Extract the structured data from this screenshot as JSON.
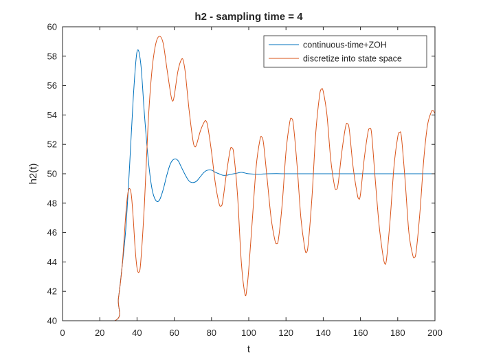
{
  "chart_data": {
    "type": "line",
    "title": "h2 - sampling time = 4",
    "xlabel": "t",
    "ylabel": "h2(t)",
    "xlim": [
      0,
      200
    ],
    "ylim": [
      40,
      60
    ],
    "xticks": [
      0,
      20,
      40,
      60,
      80,
      100,
      120,
      140,
      160,
      180,
      200
    ],
    "yticks": [
      40,
      42,
      44,
      46,
      48,
      50,
      52,
      54,
      56,
      58,
      60
    ],
    "grid": false,
    "legend_position": "top-right",
    "series": [
      {
        "name": "continuous-time+ZOH",
        "color": "#0072BD",
        "points": [
          [
            0,
            40
          ],
          [
            28,
            40
          ],
          [
            30,
            41.5
          ],
          [
            32,
            43.7
          ],
          [
            34,
            46.3
          ],
          [
            36,
            50.5
          ],
          [
            38,
            55.2
          ],
          [
            40,
            58.3
          ],
          [
            42,
            57.5
          ],
          [
            44,
            54.0
          ],
          [
            46,
            51.0
          ],
          [
            48,
            49.0
          ],
          [
            50,
            48.2
          ],
          [
            52,
            48.2
          ],
          [
            54,
            48.9
          ],
          [
            56,
            49.9
          ],
          [
            58,
            50.7
          ],
          [
            60,
            51.0
          ],
          [
            62,
            50.9
          ],
          [
            64,
            50.4
          ],
          [
            66,
            49.9
          ],
          [
            68,
            49.5
          ],
          [
            70,
            49.4
          ],
          [
            72,
            49.5
          ],
          [
            74,
            49.8
          ],
          [
            76,
            50.1
          ],
          [
            78,
            50.25
          ],
          [
            80,
            50.25
          ],
          [
            82,
            50.1
          ],
          [
            84,
            50.0
          ],
          [
            86,
            49.9
          ],
          [
            88,
            49.9
          ],
          [
            90,
            49.95
          ],
          [
            92,
            50.0
          ],
          [
            94,
            50.05
          ],
          [
            96,
            50.1
          ],
          [
            98,
            50.05
          ],
          [
            100,
            50.0
          ],
          [
            105,
            49.97
          ],
          [
            110,
            50.0
          ],
          [
            115,
            50.01
          ],
          [
            120,
            50.0
          ],
          [
            140,
            50.0
          ],
          [
            160,
            50.0
          ],
          [
            180,
            50.0
          ],
          [
            200,
            50.0
          ]
        ]
      },
      {
        "name": "discretize into state space",
        "color": "#D95319",
        "points": [
          [
            0,
            40
          ],
          [
            28,
            40
          ],
          [
            30,
            41.5
          ],
          [
            32,
            43.7
          ],
          [
            34,
            47.3
          ],
          [
            35,
            48.6
          ],
          [
            36,
            49.0
          ],
          [
            37,
            48.5
          ],
          [
            38,
            46.9
          ],
          [
            39,
            44.9
          ],
          [
            40,
            43.6
          ],
          [
            41,
            43.3
          ],
          [
            42,
            44.0
          ],
          [
            44,
            48.0
          ],
          [
            46,
            53.5
          ],
          [
            48,
            57.0
          ],
          [
            50,
            58.8
          ],
          [
            52,
            59.35
          ],
          [
            54,
            58.9
          ],
          [
            56,
            57.2
          ],
          [
            58,
            55.5
          ],
          [
            59,
            54.95
          ],
          [
            60,
            55.3
          ],
          [
            62,
            57.0
          ],
          [
            64,
            57.8
          ],
          [
            65,
            57.6
          ],
          [
            66,
            56.8
          ],
          [
            68,
            54.3
          ],
          [
            70,
            52.3
          ],
          [
            71,
            51.85
          ],
          [
            72,
            52.0
          ],
          [
            74,
            52.9
          ],
          [
            76,
            53.5
          ],
          [
            77,
            53.6
          ],
          [
            78,
            53.2
          ],
          [
            80,
            51.5
          ],
          [
            82,
            49.4
          ],
          [
            84,
            48.0
          ],
          [
            85,
            47.8
          ],
          [
            86,
            48.1
          ],
          [
            88,
            50.0
          ],
          [
            90,
            51.6
          ],
          [
            91,
            51.75
          ],
          [
            92,
            51.3
          ],
          [
            94,
            48.5
          ],
          [
            96,
            44.0
          ],
          [
            98,
            41.8
          ],
          [
            99,
            42.2
          ],
          [
            100,
            43.5
          ],
          [
            102,
            47.0
          ],
          [
            104,
            50.5
          ],
          [
            106,
            52.3
          ],
          [
            107,
            52.5
          ],
          [
            108,
            52.0
          ],
          [
            110,
            49.5
          ],
          [
            112,
            47.0
          ],
          [
            114,
            45.5
          ],
          [
            115,
            45.25
          ],
          [
            116,
            45.6
          ],
          [
            118,
            48.0
          ],
          [
            120,
            51.5
          ],
          [
            122,
            53.5
          ],
          [
            123,
            53.75
          ],
          [
            124,
            53.3
          ],
          [
            126,
            50.5
          ],
          [
            128,
            47.0
          ],
          [
            130,
            45.0
          ],
          [
            131,
            44.65
          ],
          [
            132,
            45.3
          ],
          [
            134,
            48.5
          ],
          [
            136,
            52.8
          ],
          [
            138,
            55.3
          ],
          [
            139,
            55.75
          ],
          [
            140,
            55.6
          ],
          [
            142,
            54.0
          ],
          [
            144,
            51.0
          ],
          [
            146,
            49.2
          ],
          [
            147,
            48.95
          ],
          [
            148,
            49.3
          ],
          [
            150,
            51.5
          ],
          [
            152,
            53.2
          ],
          [
            153,
            53.4
          ],
          [
            154,
            53.0
          ],
          [
            156,
            50.5
          ],
          [
            158,
            48.8
          ],
          [
            159,
            48.3
          ],
          [
            160,
            48.6
          ],
          [
            162,
            51.0
          ],
          [
            164,
            52.8
          ],
          [
            165,
            53.05
          ],
          [
            166,
            52.7
          ],
          [
            168,
            49.5
          ],
          [
            170,
            46.5
          ],
          [
            172,
            44.5
          ],
          [
            173,
            43.9
          ],
          [
            174,
            44.2
          ],
          [
            176,
            47.0
          ],
          [
            178,
            50.5
          ],
          [
            180,
            52.5
          ],
          [
            181,
            52.8
          ],
          [
            182,
            52.5
          ],
          [
            184,
            49.5
          ],
          [
            186,
            46.0
          ],
          [
            188,
            44.5
          ],
          [
            189,
            44.3
          ],
          [
            190,
            44.8
          ],
          [
            192,
            47.5
          ],
          [
            194,
            51.0
          ],
          [
            196,
            53.3
          ],
          [
            198,
            54.2
          ],
          [
            199,
            54.3
          ],
          [
            200,
            54.1
          ]
        ]
      }
    ]
  }
}
